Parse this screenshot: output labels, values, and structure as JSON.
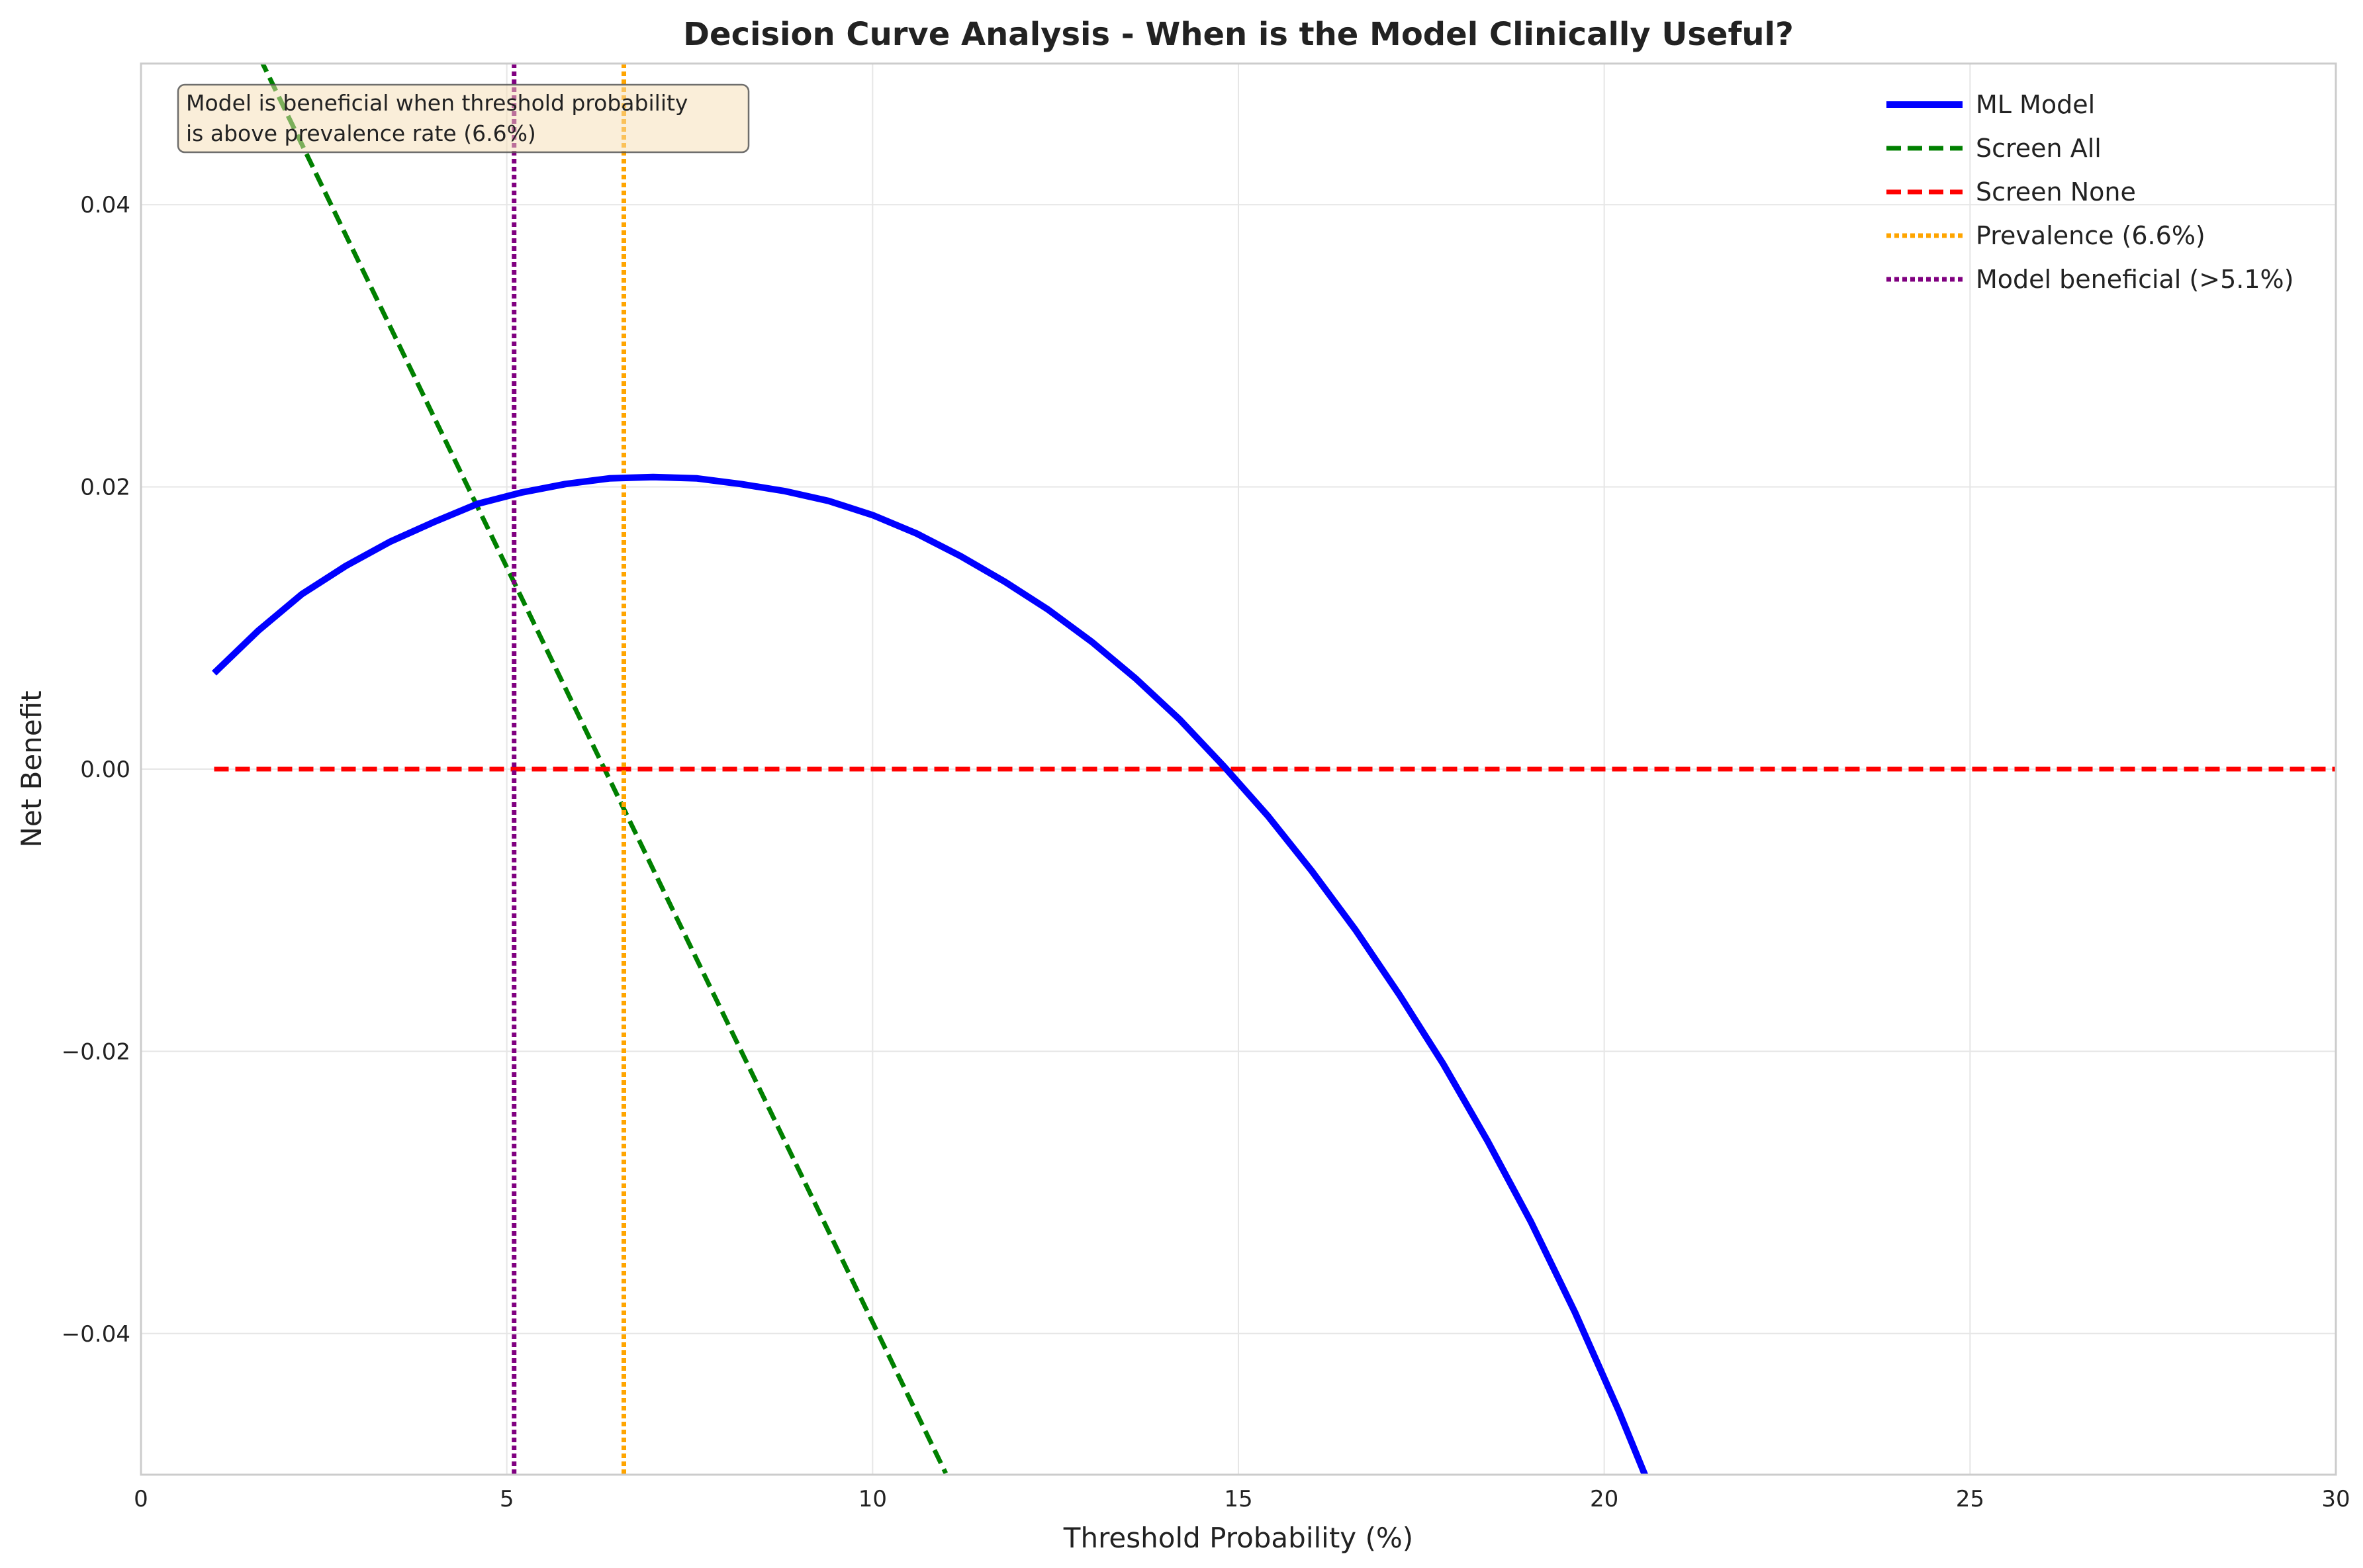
{
  "chart_data": {
    "type": "line",
    "title": "Decision Curve Analysis - When is the Model Clinically Useful?",
    "xlabel": "Threshold Probability (%)",
    "ylabel": "Net Benefit",
    "xlim": [
      0,
      30
    ],
    "ylim": [
      -0.05,
      0.05
    ],
    "x_ticks": [
      0,
      5,
      10,
      15,
      20,
      25,
      30
    ],
    "x_tick_labels": [
      "0",
      "5",
      "10",
      "15",
      "20",
      "25",
      "30"
    ],
    "y_ticks": [
      -0.04,
      -0.02,
      0.0,
      0.02,
      0.04
    ],
    "y_tick_labels": [
      "−0.04",
      "−0.02",
      "0.00",
      "0.02",
      "0.04"
    ],
    "grid": true,
    "legend_position": "top-right",
    "annotation": {
      "lines": [
        "Model is beneficial when threshold probability",
        "is above prevalence rate (6.6%)"
      ],
      "position": "top-left"
    },
    "series": [
      {
        "name": "ML Model",
        "color": "#0000ff",
        "style": "solid",
        "x": [
          1.0,
          1.6,
          2.2,
          2.8,
          3.4,
          4.0,
          4.6,
          5.2,
          5.8,
          6.4,
          7.0,
          7.6,
          8.2,
          8.8,
          9.4,
          10.0,
          10.6,
          11.2,
          11.8,
          12.4,
          13.0,
          13.6,
          14.2,
          14.8,
          15.4,
          16.0,
          16.6,
          17.2,
          17.8,
          18.4,
          19.0,
          19.6,
          20.2,
          20.8,
          21.3
        ],
        "y": [
          0.0068,
          0.0098,
          0.0124,
          0.0144,
          0.0161,
          0.0175,
          0.0188,
          0.0196,
          0.0202,
          0.0206,
          0.0207,
          0.0206,
          0.0202,
          0.0197,
          0.019,
          0.018,
          0.0167,
          0.0151,
          0.0133,
          0.0113,
          0.009,
          0.0064,
          0.0035,
          0.0002,
          -0.0033,
          -0.0072,
          -0.0114,
          -0.016,
          -0.0209,
          -0.0263,
          -0.0321,
          -0.0385,
          -0.0455,
          -0.0531,
          -0.0595
        ]
      },
      {
        "name": "Screen All",
        "color": "#008000",
        "style": "dashed",
        "x": [
          1.0,
          11.0
        ],
        "y": [
          0.0571,
          -0.0499
        ]
      },
      {
        "name": "Screen None",
        "color": "#ff0000",
        "style": "dashed",
        "x": [
          1.0,
          30.0
        ],
        "y": [
          0.0,
          0.0
        ]
      },
      {
        "name": "Prevalence (6.6%)",
        "color": "#ffa500",
        "style": "dotted",
        "vline": 6.6
      },
      {
        "name": "Model beneficial (>5.1%)",
        "color": "#800080",
        "style": "dotted",
        "vline": 5.1
      }
    ]
  }
}
